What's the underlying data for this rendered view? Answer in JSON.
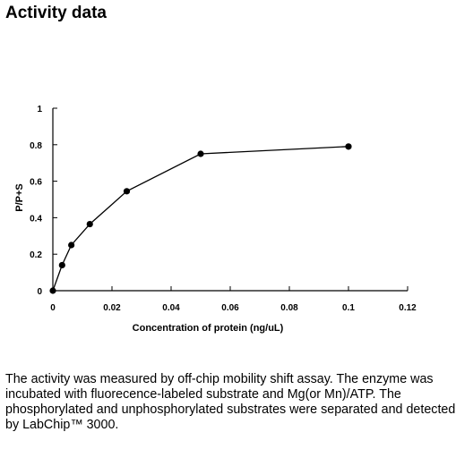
{
  "page": {
    "title": "Activity data",
    "caption": "The activity was measured by off-chip mobility shift assay. The enzyme was incubated with fluorecence-labeled  substrate and Mg(or Mn)/ATP. The phosphorylated and unphosphorylated substrates were separated and detected by LabChip™ 3000."
  },
  "chart_data": {
    "type": "line",
    "title": "",
    "xlabel": "Concentration of protein (ng/uL)",
    "ylabel": "P/P+S",
    "xlim": [
      0,
      0.12
    ],
    "ylim": [
      0,
      1
    ],
    "x_ticks": [
      0,
      0.02,
      0.04,
      0.06,
      0.08,
      0.1,
      0.12
    ],
    "x_tick_labels": [
      "0",
      "0.02",
      "0.04",
      "0.06",
      "0.08",
      "0.1",
      "0.12"
    ],
    "y_ticks": [
      0,
      0.2,
      0.4,
      0.6,
      0.8,
      1
    ],
    "y_tick_labels": [
      "0",
      "0.2",
      "0.4",
      "0.6",
      "0.8",
      "1"
    ],
    "grid": false,
    "legend": "none",
    "series": [
      {
        "x": [
          0,
          0.003125,
          0.00625,
          0.0125,
          0.025,
          0.05,
          0.1
        ],
        "y": [
          0,
          0.14,
          0.25,
          0.365,
          0.545,
          0.75,
          0.79
        ],
        "color": "#000000"
      }
    ]
  }
}
